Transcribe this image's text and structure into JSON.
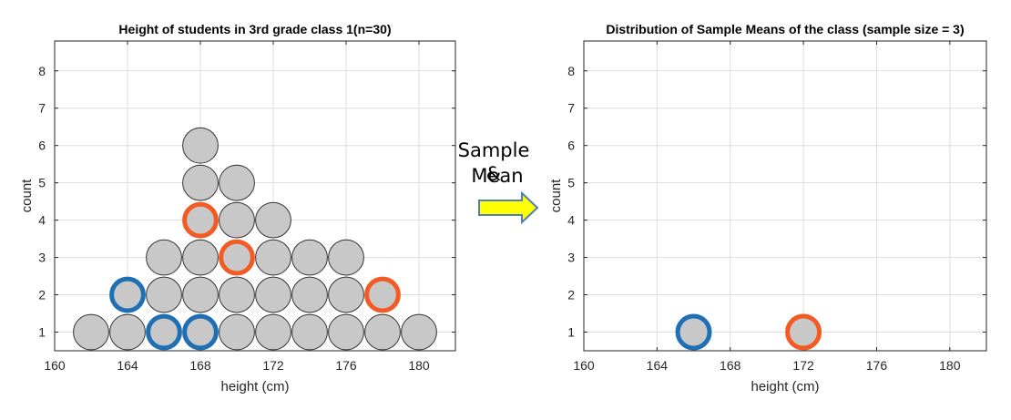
{
  "colors": {
    "dot_fill": "#c8c8c8",
    "dot_stroke": "#333333",
    "blue": "#1f6fb4",
    "orange": "#f45a23",
    "grid": "#dddddd",
    "axis": "#262626",
    "arrow_fill": "#ffff00",
    "arrow_stroke": "#4f7fbf"
  },
  "arrow": {
    "line1": "Sample &",
    "line2": "Mean"
  },
  "chart_data": [
    {
      "type": "scatter",
      "title": "Height of students in 3rd grade class 1(n=30)",
      "xlabel": "height (cm)",
      "ylabel": "count",
      "xlim": [
        160,
        182
      ],
      "ylim": [
        0.5,
        8.8
      ],
      "xticks": [
        160,
        164,
        168,
        172,
        176,
        180
      ],
      "yticks": [
        1,
        2,
        3,
        4,
        5,
        6,
        7,
        8
      ],
      "grid": true,
      "points": [
        {
          "x": 162,
          "y": 1,
          "style": "plain"
        },
        {
          "x": 164,
          "y": 1,
          "style": "plain"
        },
        {
          "x": 166,
          "y": 1,
          "style": "blue"
        },
        {
          "x": 168,
          "y": 1,
          "style": "blue"
        },
        {
          "x": 170,
          "y": 1,
          "style": "plain"
        },
        {
          "x": 172,
          "y": 1,
          "style": "plain"
        },
        {
          "x": 174,
          "y": 1,
          "style": "plain"
        },
        {
          "x": 176,
          "y": 1,
          "style": "plain"
        },
        {
          "x": 178,
          "y": 1,
          "style": "plain"
        },
        {
          "x": 180,
          "y": 1,
          "style": "plain"
        },
        {
          "x": 164,
          "y": 2,
          "style": "blue"
        },
        {
          "x": 166,
          "y": 2,
          "style": "plain"
        },
        {
          "x": 168,
          "y": 2,
          "style": "plain"
        },
        {
          "x": 170,
          "y": 2,
          "style": "plain"
        },
        {
          "x": 172,
          "y": 2,
          "style": "plain"
        },
        {
          "x": 174,
          "y": 2,
          "style": "plain"
        },
        {
          "x": 176,
          "y": 2,
          "style": "plain"
        },
        {
          "x": 178,
          "y": 2,
          "style": "orange"
        },
        {
          "x": 166,
          "y": 3,
          "style": "plain"
        },
        {
          "x": 168,
          "y": 3,
          "style": "plain"
        },
        {
          "x": 170,
          "y": 3,
          "style": "orange"
        },
        {
          "x": 172,
          "y": 3,
          "style": "plain"
        },
        {
          "x": 174,
          "y": 3,
          "style": "plain"
        },
        {
          "x": 176,
          "y": 3,
          "style": "plain"
        },
        {
          "x": 168,
          "y": 4,
          "style": "orange"
        },
        {
          "x": 170,
          "y": 4,
          "style": "plain"
        },
        {
          "x": 172,
          "y": 4,
          "style": "plain"
        },
        {
          "x": 168,
          "y": 5,
          "style": "plain"
        },
        {
          "x": 170,
          "y": 5,
          "style": "plain"
        },
        {
          "x": 168,
          "y": 6,
          "style": "plain"
        }
      ]
    },
    {
      "type": "scatter",
      "title": "Distribution of Sample Means of the class (sample size = 3)",
      "xlabel": "height (cm)",
      "ylabel": "count",
      "xlim": [
        160,
        182
      ],
      "ylim": [
        0.5,
        8.8
      ],
      "xticks": [
        160,
        164,
        168,
        172,
        176,
        180
      ],
      "yticks": [
        1,
        2,
        3,
        4,
        5,
        6,
        7,
        8
      ],
      "grid": true,
      "points": [
        {
          "x": 166,
          "y": 1,
          "style": "blue"
        },
        {
          "x": 172,
          "y": 1,
          "style": "orange"
        }
      ]
    }
  ]
}
